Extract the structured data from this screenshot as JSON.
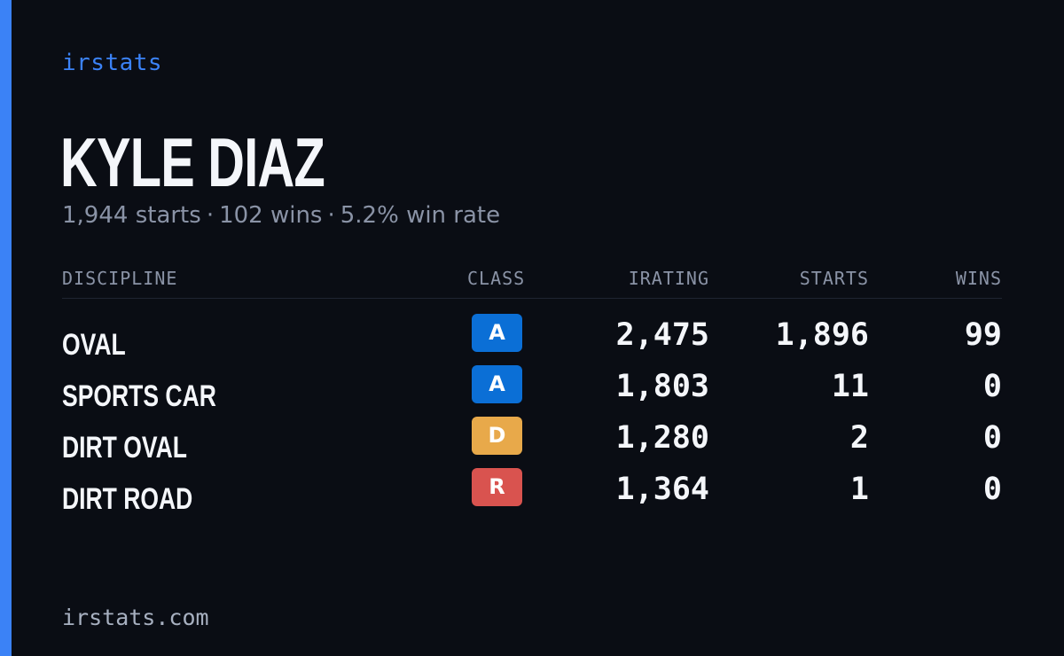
{
  "brand": "irstats",
  "accent_color": "#3b82f6",
  "driver": {
    "name": "KYLE DIAZ",
    "starts_text": "1,944 starts",
    "wins_text": "102 wins",
    "win_rate_text": "5.2% win rate",
    "separator": "·"
  },
  "table": {
    "headers": {
      "discipline": "DISCIPLINE",
      "class": "CLASS",
      "irating": "IRATING",
      "starts": "STARTS",
      "wins": "WINS"
    },
    "rows": [
      {
        "discipline": "OVAL",
        "class": "A",
        "class_color": "#0b6fd6",
        "irating": "2,475",
        "starts": "1,896",
        "wins": "99"
      },
      {
        "discipline": "SPORTS CAR",
        "class": "A",
        "class_color": "#0b6fd6",
        "irating": "1,803",
        "starts": "11",
        "wins": "0"
      },
      {
        "discipline": "DIRT OVAL",
        "class": "D",
        "class_color": "#e8a94a",
        "irating": "1,280",
        "starts": "2",
        "wins": "0"
      },
      {
        "discipline": "DIRT ROAD",
        "class": "R",
        "class_color": "#d9534f",
        "irating": "1,364",
        "starts": "1",
        "wins": "0"
      }
    ]
  },
  "footer": "irstats.com"
}
